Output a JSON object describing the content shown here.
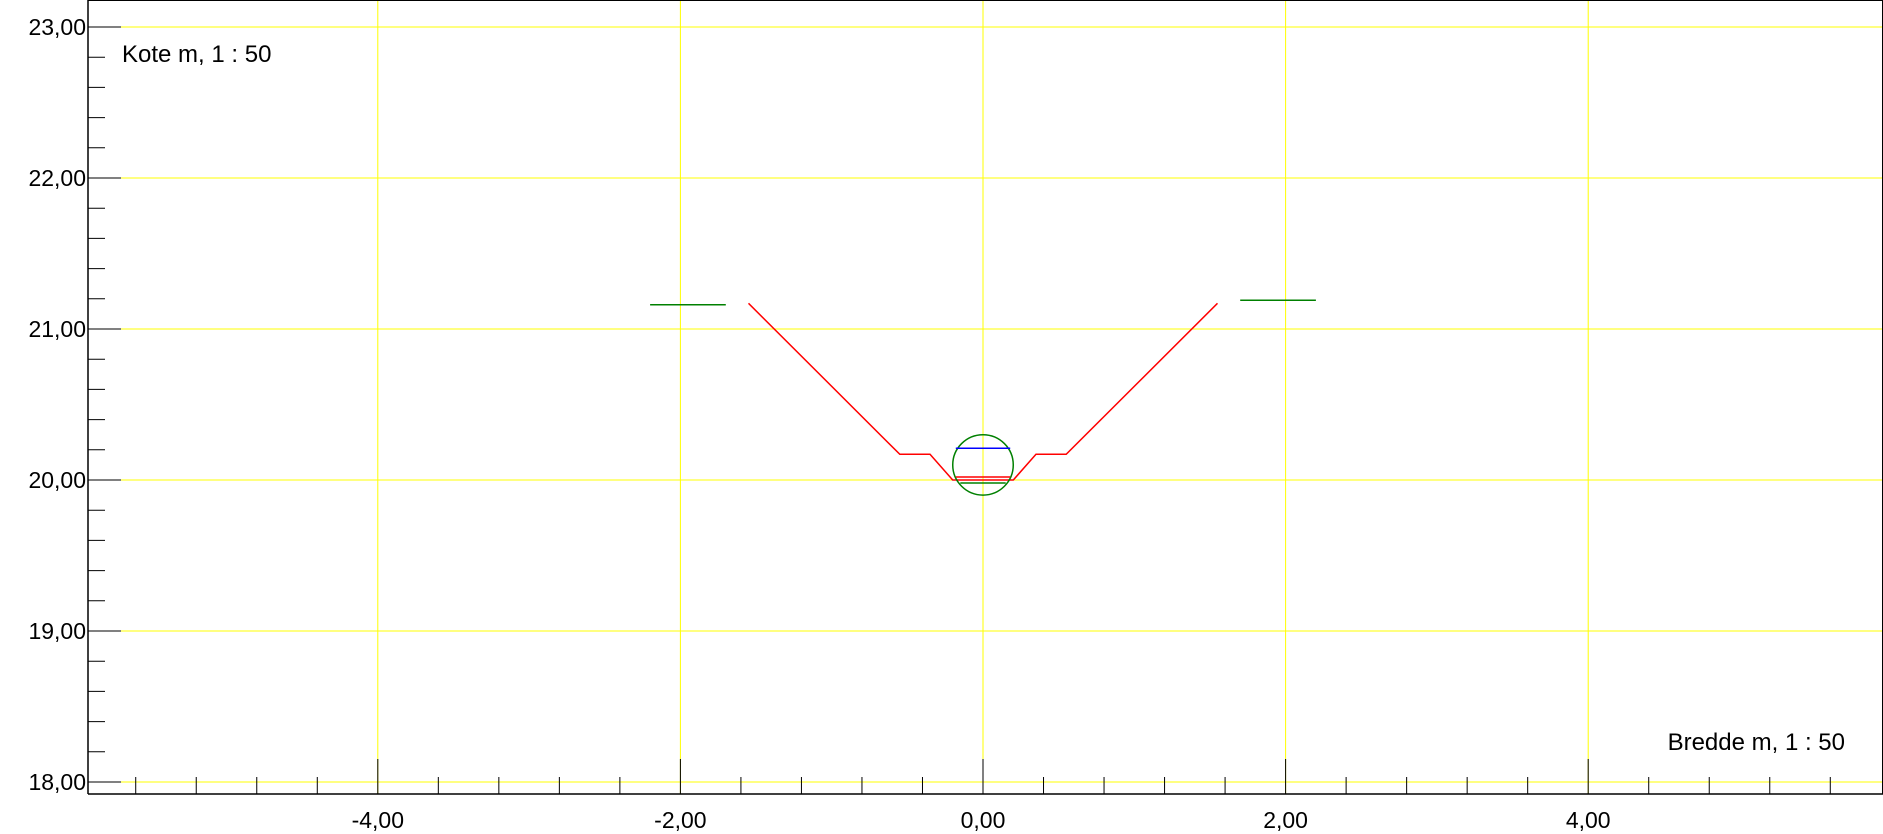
{
  "chart_data": {
    "type": "line",
    "title": "",
    "xlabel": "Bredde m, 1 : 50",
    "ylabel": "Kote m, 1 : 50",
    "xlim": [
      -5.95,
      5.9
    ],
    "ylim": [
      18.0,
      23.0
    ],
    "grid": true,
    "legend": "none",
    "x_ticks": [
      -4,
      -2,
      0,
      2,
      4
    ],
    "x_tick_labels": [
      "-4,00",
      "-2,00",
      "0,00",
      "2,00",
      "4,00"
    ],
    "y_ticks": [
      18,
      19,
      20,
      21,
      22,
      23
    ],
    "y_tick_labels": [
      "18,00",
      "19,00",
      "20,00",
      "21,00",
      "22,00",
      "23,00"
    ],
    "x_minor_step": 0.4,
    "y_minor_step": 0.2,
    "colors": {
      "grid": "#ffff00",
      "axis": "#000000",
      "profile": "#ff0000",
      "terrain": "#008000",
      "pipe": "#008000",
      "water": "#0000ff"
    },
    "series": [
      {
        "color": "#ff0000",
        "kind": "line",
        "points": [
          [
            -1.55,
            21.17
          ],
          [
            -0.55,
            20.17
          ],
          [
            -0.35,
            20.17
          ],
          [
            -0.2,
            20.0
          ],
          [
            0.2,
            20.0
          ],
          [
            0.35,
            20.17
          ],
          [
            0.55,
            20.17
          ],
          [
            1.55,
            21.17
          ]
        ]
      },
      {
        "color": "#008000",
        "kind": "line",
        "points": [
          [
            -2.2,
            21.16
          ],
          [
            -1.7,
            21.16
          ]
        ]
      },
      {
        "color": "#008000",
        "kind": "line",
        "points": [
          [
            1.7,
            21.19
          ],
          [
            2.2,
            21.19
          ]
        ]
      },
      {
        "color": "#008000",
        "kind": "circle",
        "center": [
          0.0,
          20.1
        ],
        "radius": 0.2
      },
      {
        "color": "#008000",
        "kind": "line",
        "points": [
          [
            -0.15,
            19.98
          ],
          [
            0.15,
            19.98
          ]
        ]
      },
      {
        "color": "#0000ff",
        "kind": "line",
        "points": [
          [
            -0.18,
            20.21
          ],
          [
            0.18,
            20.21
          ]
        ]
      },
      {
        "color": "#ff0000",
        "kind": "line",
        "points": [
          [
            -0.18,
            20.02
          ],
          [
            0.18,
            20.02
          ]
        ]
      }
    ]
  }
}
